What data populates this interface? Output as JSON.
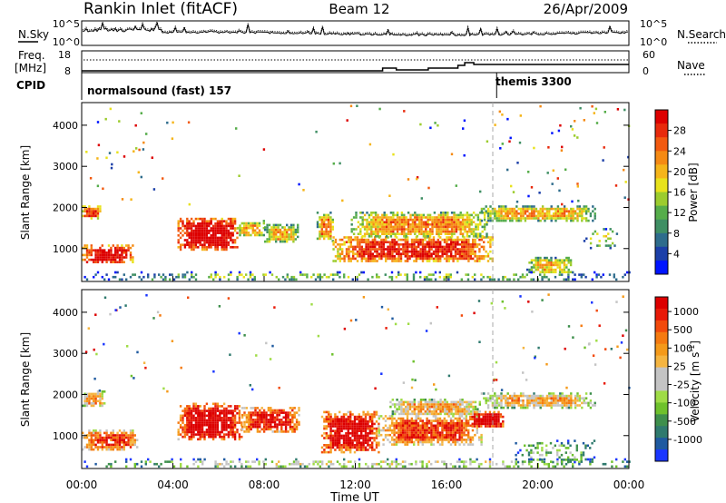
{
  "header": {
    "station": "Rankin Inlet (fitACF)",
    "beam": "Beam 12",
    "date": "26/Apr/2009"
  },
  "noise_panel": {
    "left_label": "N.Sky",
    "right_label": "N.Search",
    "left_ticks": [
      "10^5",
      "10^0"
    ],
    "right_ticks": [
      "10^5",
      "10^0"
    ]
  },
  "freq_panel": {
    "left_label_1": "Freq.",
    "left_label_2": "[MHz]",
    "right_label": "Nave",
    "left_ticks": [
      "18",
      "8"
    ],
    "right_ticks": [
      "60",
      "0"
    ]
  },
  "cpid_panel": {
    "label": "CPID",
    "modes": [
      {
        "name": "normalsound (fast) 157",
        "start_hour": 0
      },
      {
        "name": "themis 3300",
        "start_hour": 18.2
      }
    ]
  },
  "x_axis": {
    "label": "Time UT",
    "ticks": [
      "00:00",
      "04:00",
      "08:00",
      "12:00",
      "16:00",
      "20:00",
      "00:00"
    ]
  },
  "chart_data": [
    {
      "type": "heatmap",
      "title": "Power",
      "xlabel": "Time UT",
      "ylabel": "Slant Range [km]",
      "xlim": [
        0,
        24
      ],
      "ylim": [
        200,
        4550
      ],
      "yticks": [
        "1000",
        "2000",
        "3000",
        "4000"
      ],
      "colorbar": {
        "label": "Power [dB]",
        "ticks": [
          "4",
          "8",
          "12",
          "16",
          "20",
          "24",
          "28"
        ],
        "colors": [
          "#0014ff",
          "#1c3fa8",
          "#2e6c8c",
          "#3f8f64",
          "#56ad4a",
          "#9ccc2e",
          "#e8e21c",
          "#f5b51a",
          "#f58a14",
          "#f25a10",
          "#e82a0c",
          "#dd0000"
        ]
      },
      "regions": [
        {
          "t0": 0.0,
          "t1": 0.8,
          "r0": 1750,
          "r1": 2050,
          "value": 0.7
        },
        {
          "t0": 0.0,
          "t1": 2.2,
          "r0": 650,
          "r1": 1100,
          "value": 0.85
        },
        {
          "t0": 4.2,
          "t1": 6.8,
          "r0": 1000,
          "r1": 1750,
          "value": 0.9
        },
        {
          "t0": 6.8,
          "t1": 8.0,
          "r0": 1300,
          "r1": 1700,
          "value": 0.5
        },
        {
          "t0": 8.0,
          "t1": 9.5,
          "r0": 1150,
          "r1": 1600,
          "value": 0.45
        },
        {
          "t0": 10.3,
          "t1": 11.0,
          "r0": 1200,
          "r1": 1900,
          "value": 0.55
        },
        {
          "t0": 11.0,
          "t1": 18.0,
          "r0": 700,
          "r1": 1300,
          "value": 0.75
        },
        {
          "t0": 11.8,
          "t1": 17.8,
          "r0": 1300,
          "r1": 1900,
          "value": 0.55
        },
        {
          "t0": 17.5,
          "t1": 22.5,
          "r0": 1700,
          "r1": 2050,
          "value": 0.5
        },
        {
          "t0": 19.5,
          "t1": 21.5,
          "r0": 400,
          "r1": 800,
          "value": 0.45
        },
        {
          "t0": 22.0,
          "t1": 23.5,
          "r0": 1000,
          "r1": 1500,
          "value": 0.3
        },
        {
          "t0": 0.0,
          "t1": 24.0,
          "r0": 250,
          "r1": 450,
          "value": 0.25
        }
      ]
    },
    {
      "type": "heatmap",
      "title": "Velocity",
      "xlabel": "Time UT",
      "ylabel": "Slant Range [km]",
      "xlim": [
        0,
        24
      ],
      "ylim": [
        200,
        4550
      ],
      "yticks": [
        "1000",
        "2000",
        "3000",
        "4000"
      ],
      "colorbar": {
        "label": "Velocity [m s^-1]",
        "ticks": [
          "1000",
          "500",
          "100",
          "25",
          "-25",
          "-100",
          "-500",
          "-1000"
        ],
        "colors": [
          "#1a36ff",
          "#1f5aa0",
          "#2f7a6e",
          "#3e8f4c",
          "#6ec12c",
          "#9fdc46",
          "#c4c4c4",
          "#c4c4c4",
          "#f5b541",
          "#f59a1a",
          "#f57a10",
          "#f24a0c",
          "#e81a08",
          "#dd0000"
        ]
      },
      "regions": [
        {
          "t0": 0.0,
          "t1": 1.0,
          "r0": 1700,
          "r1": 2100,
          "value": 0.5
        },
        {
          "t0": 0.0,
          "t1": 2.5,
          "r0": 650,
          "r1": 1150,
          "value": 0.68
        },
        {
          "t0": 4.2,
          "t1": 7.0,
          "r0": 900,
          "r1": 1800,
          "value": 0.88
        },
        {
          "t0": 7.0,
          "t1": 9.5,
          "r0": 1100,
          "r1": 1700,
          "value": 0.8
        },
        {
          "t0": 10.5,
          "t1": 13.0,
          "r0": 600,
          "r1": 1600,
          "value": 0.85
        },
        {
          "t0": 13.0,
          "t1": 17.5,
          "r0": 800,
          "r1": 1500,
          "value": 0.7
        },
        {
          "t0": 13.5,
          "t1": 17.5,
          "r0": 1500,
          "r1": 1900,
          "value": 0.5
        },
        {
          "t0": 17.0,
          "t1": 18.5,
          "r0": 1200,
          "r1": 1600,
          "value": 0.9
        },
        {
          "t0": 17.5,
          "t1": 22.5,
          "r0": 1700,
          "r1": 2050,
          "value": 0.5
        },
        {
          "t0": 19.0,
          "t1": 22.5,
          "r0": 350,
          "r1": 900,
          "value": 0.2
        },
        {
          "t0": 0.0,
          "t1": 24.0,
          "r0": 250,
          "r1": 450,
          "value": 0.3
        }
      ]
    }
  ]
}
